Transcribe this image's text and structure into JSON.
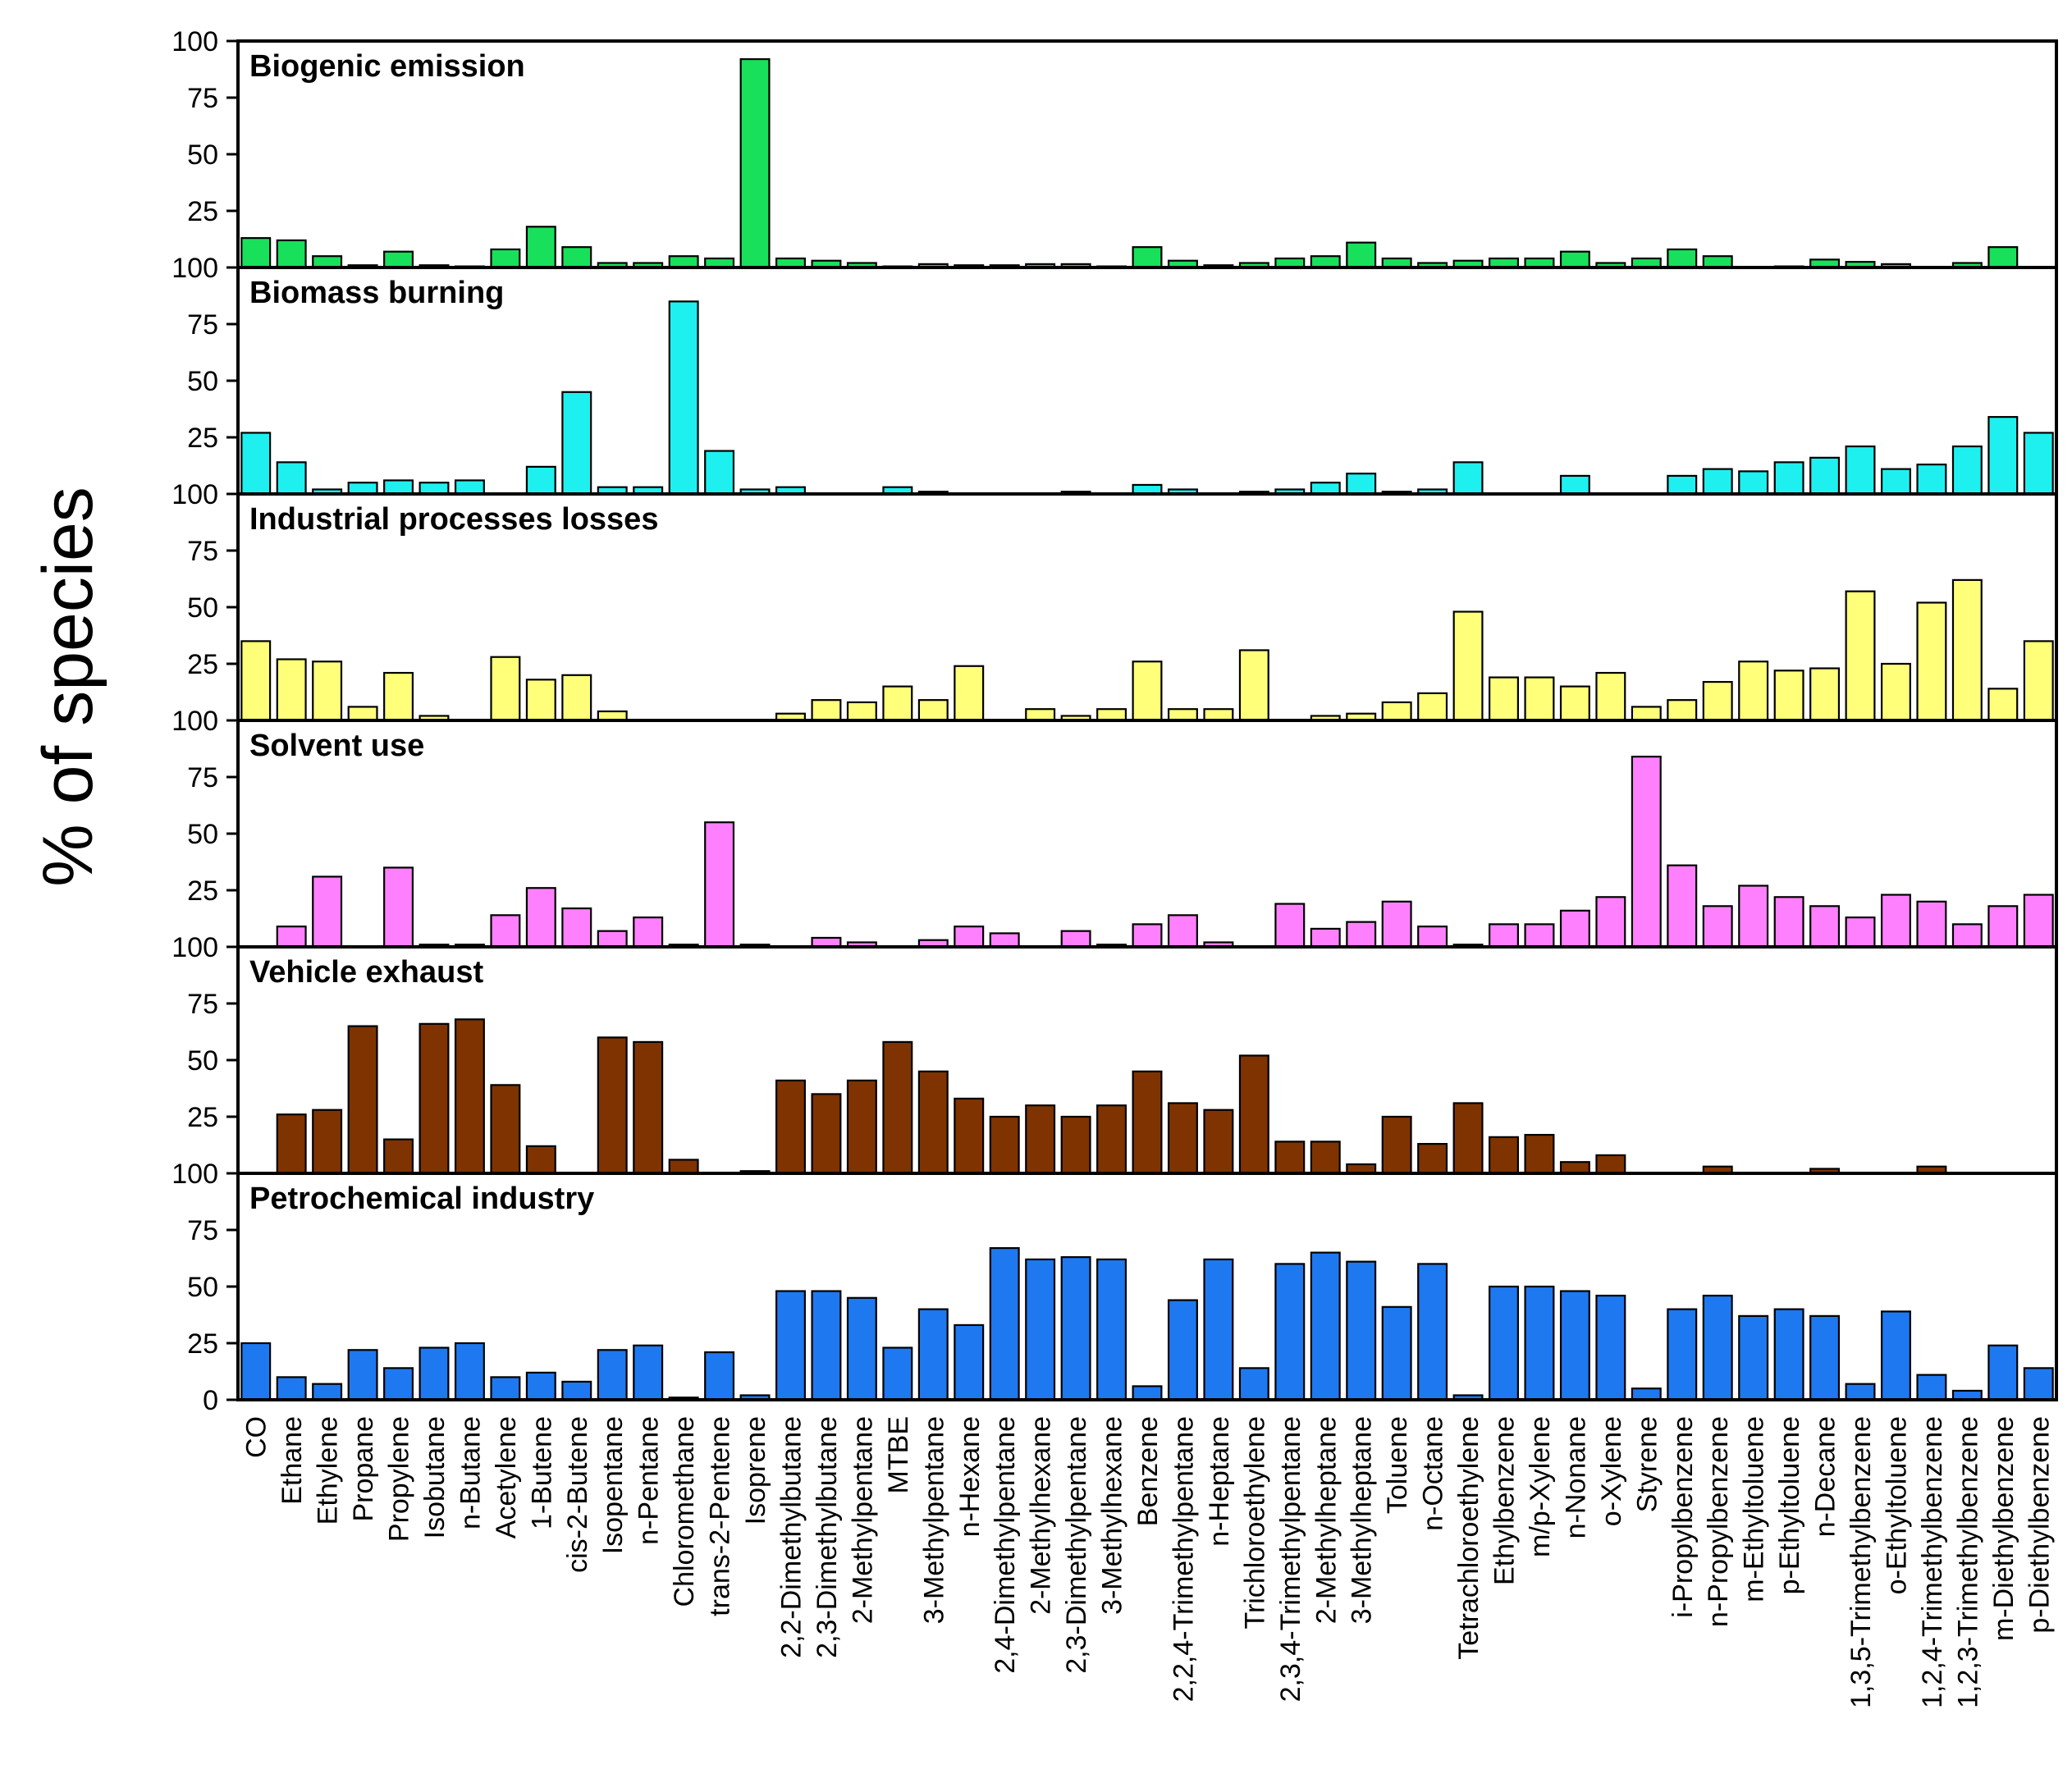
{
  "chart_data": {
    "type": "bar",
    "ylabel": "% of species",
    "ylim": [
      0,
      100
    ],
    "yticks": [
      "100",
      "75",
      "50",
      "25",
      "0"
    ],
    "categories": [
      "CO",
      "Ethane",
      "Ethylene",
      "Propane",
      "Propylene",
      "Isobutane",
      "n-Butane",
      "Acetylene",
      "1-Butene",
      "cis-2-Butene",
      "Isopentane",
      "n-Pentane",
      "Chloromethane",
      "trans-2-Pentene",
      "Isoprene",
      "2,2-Dimethylbutane",
      "2,3-Dimethylbutane",
      "2-Methylpentane",
      "MTBE",
      "3-Methylpentane",
      "n-Hexane",
      "2,4-Dimethylpentane",
      "2-Methylhexane",
      "2,3-Dimethylpentane",
      "3-Methylhexane",
      "Benzene",
      "2,2,4-Trimethylpentane",
      "n-Heptane",
      "Trichloroethylene",
      "2,3,4-Trimethylpentane",
      "2-Methylheptane",
      "3-Methylheptane",
      "Toluene",
      "n-Octane",
      "Tetrachloroethylene",
      "Ethylbenzene",
      "m/p-Xylene",
      "n-Nonane",
      "o-Xylene",
      "Styrene",
      "i-Propylbenzene",
      "n-Propylbenzene",
      "m-Ethyltoluene",
      "p-Ethyltoluene",
      "n-Decane",
      "1,3,5-Trimethylbenzene",
      "o-Ethyltoluene",
      "1,2,4-Trimethylbenzene",
      "1,2,3-Trimethylbenzene",
      "m-Diethylbenzene",
      "p-Diethylbenzene"
    ],
    "series": [
      {
        "name": "Biogenic emission",
        "color": "#18e05a",
        "values": [
          13,
          12,
          5,
          1,
          7,
          1,
          0.5,
          8,
          18,
          9,
          2,
          2,
          5,
          4,
          92,
          4,
          3,
          2,
          0.5,
          1.5,
          1,
          1,
          1.5,
          1.5,
          0.5,
          9,
          3,
          1,
          2,
          4,
          5,
          11,
          4,
          2,
          3,
          4,
          4,
          7,
          2,
          4,
          8,
          5,
          0,
          0.5,
          3.5,
          2.5,
          1.5,
          0,
          2,
          9,
          0
        ]
      },
      {
        "name": "Biomass burning",
        "color": "#1ef0f0",
        "values": [
          27,
          14,
          2,
          5,
          6,
          5,
          6,
          0,
          12,
          45,
          3,
          3,
          85,
          19,
          2,
          3,
          0,
          0,
          3,
          1,
          0,
          0,
          0,
          1,
          0,
          4,
          2,
          0,
          1,
          2,
          5,
          9,
          1,
          2,
          14,
          0,
          0,
          8,
          0,
          0,
          8,
          11,
          10,
          14,
          16,
          21,
          11,
          13,
          21,
          34,
          27
        ]
      },
      {
        "name": "Industrial processes losses",
        "color": "#ffff7a",
        "values": [
          35,
          27,
          26,
          6,
          21,
          2,
          0,
          28,
          18,
          20,
          4,
          0,
          0,
          0,
          0,
          3,
          9,
          8,
          15,
          9,
          24,
          0,
          5,
          2,
          5,
          26,
          5,
          5,
          31,
          0,
          2,
          3,
          8,
          12,
          48,
          19,
          19,
          15,
          21,
          6,
          9,
          17,
          26,
          22,
          23,
          57,
          25,
          52,
          62,
          14,
          35
        ]
      },
      {
        "name": "Solvent use",
        "color": "#ff80ff",
        "values": [
          0,
          9,
          31,
          0,
          35,
          1,
          1,
          14,
          26,
          17,
          7,
          13,
          1,
          55,
          1,
          0,
          4,
          2,
          0,
          3,
          9,
          6,
          0,
          7,
          1,
          10,
          14,
          2,
          0,
          19,
          8,
          11,
          20,
          9,
          1,
          10,
          10,
          16,
          22,
          84,
          36,
          18,
          27,
          22,
          18,
          13,
          23,
          20,
          10,
          18,
          23
        ]
      },
      {
        "name": "Vehicle exhaust",
        "color": "#7f3300",
        "values": [
          0,
          26,
          28,
          65,
          15,
          66,
          68,
          39,
          12,
          0,
          60,
          58,
          6,
          0,
          1,
          41,
          35,
          41,
          58,
          45,
          33,
          25,
          30,
          25,
          30,
          45,
          31,
          28,
          52,
          14,
          14,
          4,
          25,
          13,
          31,
          16,
          17,
          5,
          8,
          0,
          0,
          3,
          0,
          0,
          2,
          0,
          0,
          3,
          0,
          0,
          0
        ]
      },
      {
        "name": "Petrochemical industry",
        "color": "#1e78f0",
        "values": [
          25,
          10,
          7,
          22,
          14,
          23,
          25,
          10,
          12,
          8,
          22,
          24,
          1,
          21,
          2,
          48,
          48,
          45,
          23,
          40,
          33,
          67,
          62,
          63,
          62,
          6,
          44,
          62,
          14,
          60,
          65,
          61,
          41,
          60,
          2,
          50,
          50,
          48,
          46,
          5,
          40,
          46,
          37,
          40,
          37,
          7,
          39,
          11,
          4,
          24,
          14
        ]
      }
    ]
  }
}
